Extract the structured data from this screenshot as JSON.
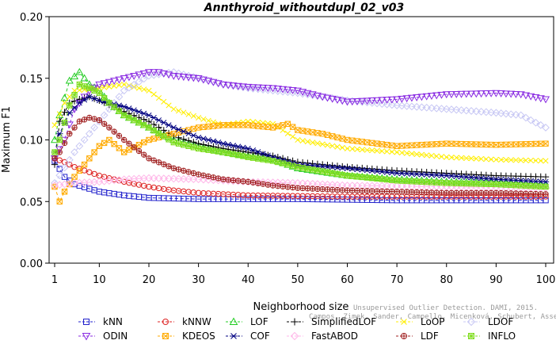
{
  "chart_data": {
    "type": "line",
    "title": "Annthyroid_withoutdupl_02_v03",
    "xlabel": "Neighborhood size",
    "ylabel": "Maximum F1",
    "xlim": [
      1,
      100
    ],
    "ylim": [
      0,
      0.2
    ],
    "xticks": [
      1,
      10,
      20,
      30,
      40,
      50,
      60,
      70,
      80,
      90,
      100
    ],
    "xtick_labels": [
      "1",
      "10",
      "20",
      "30",
      "40",
      "50",
      "60",
      "70",
      "80",
      "90",
      "100"
    ],
    "yticks": [
      0,
      0.05,
      0.1,
      0.15,
      0.2
    ],
    "ytick_labels": [
      "0.00",
      "0.05",
      "0.10",
      "0.15",
      "0.20"
    ],
    "grid": false,
    "legend_position": "bottom",
    "credit_line1": "Unsupervised Outlier Detection. DAMI, 2015.",
    "credit_line2": "Campos, Zimek, Sander, Campello, Micenková, Schubert, Assent, Houle",
    "series": [
      {
        "name": "kNN",
        "color": "#2222cc",
        "marker": "square",
        "points": [
          [
            1,
            0.083
          ],
          [
            3,
            0.07
          ],
          [
            5,
            0.064
          ],
          [
            10,
            0.058
          ],
          [
            15,
            0.055
          ],
          [
            20,
            0.053
          ],
          [
            30,
            0.052
          ],
          [
            50,
            0.052
          ],
          [
            70,
            0.051
          ],
          [
            100,
            0.051
          ]
        ]
      },
      {
        "name": "kNNW",
        "color": "#dd2222",
        "marker": "circle",
        "points": [
          [
            1,
            0.085
          ],
          [
            3,
            0.082
          ],
          [
            5,
            0.078
          ],
          [
            10,
            0.071
          ],
          [
            15,
            0.066
          ],
          [
            20,
            0.062
          ],
          [
            25,
            0.059
          ],
          [
            30,
            0.057
          ],
          [
            40,
            0.055
          ],
          [
            60,
            0.054
          ],
          [
            80,
            0.054
          ],
          [
            100,
            0.054
          ]
        ]
      },
      {
        "name": "LOF",
        "color": "#22cc22",
        "marker": "triangle-up",
        "points": [
          [
            1,
            0.1
          ],
          [
            2,
            0.12
          ],
          [
            4,
            0.148
          ],
          [
            6,
            0.155
          ],
          [
            8,
            0.145
          ],
          [
            10,
            0.14
          ],
          [
            12,
            0.13
          ],
          [
            15,
            0.12
          ],
          [
            20,
            0.11
          ],
          [
            25,
            0.1
          ],
          [
            30,
            0.095
          ],
          [
            35,
            0.09
          ],
          [
            40,
            0.087
          ],
          [
            45,
            0.084
          ],
          [
            50,
            0.077
          ],
          [
            60,
            0.071
          ],
          [
            70,
            0.068
          ],
          [
            80,
            0.066
          ],
          [
            90,
            0.065
          ],
          [
            100,
            0.063
          ]
        ]
      },
      {
        "name": "SimplifiedLOF",
        "color": "#000000",
        "marker": "plus",
        "points": [
          [
            1,
            0.08
          ],
          [
            2,
            0.115
          ],
          [
            4,
            0.13
          ],
          [
            6,
            0.133
          ],
          [
            8,
            0.135
          ],
          [
            10,
            0.132
          ],
          [
            15,
            0.123
          ],
          [
            20,
            0.115
          ],
          [
            25,
            0.103
          ],
          [
            30,
            0.097
          ],
          [
            35,
            0.093
          ],
          [
            40,
            0.09
          ],
          [
            45,
            0.087
          ],
          [
            50,
            0.082
          ],
          [
            60,
            0.078
          ],
          [
            70,
            0.075
          ],
          [
            80,
            0.073
          ],
          [
            90,
            0.071
          ],
          [
            100,
            0.07
          ]
        ]
      },
      {
        "name": "LoOP",
        "color": "#ffee00",
        "marker": "cross",
        "points": [
          [
            1,
            0.112
          ],
          [
            3,
            0.13
          ],
          [
            5,
            0.14
          ],
          [
            10,
            0.142
          ],
          [
            15,
            0.145
          ],
          [
            20,
            0.14
          ],
          [
            25,
            0.125
          ],
          [
            30,
            0.118
          ],
          [
            35,
            0.112
          ],
          [
            40,
            0.115
          ],
          [
            45,
            0.113
          ],
          [
            50,
            0.1
          ],
          [
            60,
            0.093
          ],
          [
            70,
            0.09
          ],
          [
            80,
            0.086
          ],
          [
            90,
            0.084
          ],
          [
            100,
            0.083
          ]
        ]
      },
      {
        "name": "LDOF",
        "color": "#c8c8f4",
        "marker": "diamond",
        "points": [
          [
            1,
            0.065
          ],
          [
            5,
            0.09
          ],
          [
            10,
            0.115
          ],
          [
            15,
            0.14
          ],
          [
            20,
            0.152
          ],
          [
            25,
            0.155
          ],
          [
            30,
            0.15
          ],
          [
            35,
            0.145
          ],
          [
            40,
            0.142
          ],
          [
            45,
            0.14
          ],
          [
            50,
            0.138
          ],
          [
            55,
            0.135
          ],
          [
            60,
            0.132
          ],
          [
            70,
            0.128
          ],
          [
            80,
            0.125
          ],
          [
            90,
            0.122
          ],
          [
            95,
            0.12
          ],
          [
            100,
            0.11
          ]
        ]
      },
      {
        "name": "ODIN",
        "color": "#8a2be2",
        "marker": "triangle-down",
        "points": [
          [
            1,
            0.085
          ],
          [
            3,
            0.1
          ],
          [
            5,
            0.125
          ],
          [
            8,
            0.14
          ],
          [
            10,
            0.145
          ],
          [
            15,
            0.15
          ],
          [
            20,
            0.155
          ],
          [
            22,
            0.155
          ],
          [
            25,
            0.152
          ],
          [
            30,
            0.15
          ],
          [
            35,
            0.145
          ],
          [
            40,
            0.143
          ],
          [
            45,
            0.142
          ],
          [
            50,
            0.14
          ],
          [
            55,
            0.135
          ],
          [
            60,
            0.131
          ],
          [
            70,
            0.133
          ],
          [
            80,
            0.137
          ],
          [
            90,
            0.138
          ],
          [
            95,
            0.137
          ],
          [
            100,
            0.133
          ]
        ]
      },
      {
        "name": "KDEOS",
        "color": "#ffaa00",
        "marker": "square-x",
        "points": [
          [
            1,
            0.062
          ],
          [
            2,
            0.05
          ],
          [
            3,
            0.058
          ],
          [
            5,
            0.07
          ],
          [
            8,
            0.085
          ],
          [
            10,
            0.095
          ],
          [
            12,
            0.1
          ],
          [
            15,
            0.09
          ],
          [
            18,
            0.096
          ],
          [
            20,
            0.1
          ],
          [
            25,
            0.105
          ],
          [
            30,
            0.11
          ],
          [
            35,
            0.112
          ],
          [
            40,
            0.112
          ],
          [
            45,
            0.11
          ],
          [
            48,
            0.113
          ],
          [
            50,
            0.108
          ],
          [
            55,
            0.105
          ],
          [
            60,
            0.1
          ],
          [
            70,
            0.095
          ],
          [
            80,
            0.097
          ],
          [
            90,
            0.096
          ],
          [
            100,
            0.097
          ]
        ]
      },
      {
        "name": "COF",
        "color": "#000080",
        "marker": "asterisk",
        "points": [
          [
            1,
            0.09
          ],
          [
            2,
            0.105
          ],
          [
            4,
            0.122
          ],
          [
            6,
            0.13
          ],
          [
            8,
            0.135
          ],
          [
            10,
            0.132
          ],
          [
            15,
            0.127
          ],
          [
            20,
            0.12
          ],
          [
            25,
            0.11
          ],
          [
            30,
            0.102
          ],
          [
            35,
            0.097
          ],
          [
            40,
            0.093
          ],
          [
            45,
            0.086
          ],
          [
            50,
            0.08
          ],
          [
            60,
            0.077
          ],
          [
            70,
            0.073
          ],
          [
            80,
            0.071
          ],
          [
            90,
            0.068
          ],
          [
            100,
            0.066
          ]
        ]
      },
      {
        "name": "FastABOD",
        "color": "#ffb6e8",
        "marker": "diamond-filled",
        "points": [
          [
            1,
            0.063
          ],
          [
            5,
            0.065
          ],
          [
            10,
            0.066
          ],
          [
            15,
            0.068
          ],
          [
            20,
            0.069
          ],
          [
            30,
            0.068
          ],
          [
            40,
            0.066
          ],
          [
            50,
            0.065
          ],
          [
            60,
            0.063
          ],
          [
            80,
            0.062
          ],
          [
            100,
            0.061
          ]
        ]
      },
      {
        "name": "LDF",
        "color": "#a02020",
        "marker": "circle-plus",
        "points": [
          [
            1,
            0.085
          ],
          [
            2,
            0.09
          ],
          [
            4,
            0.105
          ],
          [
            6,
            0.115
          ],
          [
            8,
            0.118
          ],
          [
            10,
            0.116
          ],
          [
            12,
            0.11
          ],
          [
            15,
            0.1
          ],
          [
            20,
            0.085
          ],
          [
            25,
            0.077
          ],
          [
            30,
            0.072
          ],
          [
            35,
            0.068
          ],
          [
            40,
            0.066
          ],
          [
            45,
            0.063
          ],
          [
            50,
            0.061
          ],
          [
            60,
            0.059
          ],
          [
            70,
            0.058
          ],
          [
            80,
            0.057
          ],
          [
            90,
            0.057
          ],
          [
            100,
            0.056
          ]
        ]
      },
      {
        "name": "INFLO",
        "color": "#80dd20",
        "marker": "square-star",
        "points": [
          [
            1,
            0.09
          ],
          [
            2,
            0.1
          ],
          [
            4,
            0.128
          ],
          [
            6,
            0.145
          ],
          [
            8,
            0.142
          ],
          [
            10,
            0.138
          ],
          [
            12,
            0.13
          ],
          [
            15,
            0.12
          ],
          [
            20,
            0.11
          ],
          [
            25,
            0.098
          ],
          [
            30,
            0.093
          ],
          [
            35,
            0.09
          ],
          [
            40,
            0.086
          ],
          [
            45,
            0.083
          ],
          [
            50,
            0.078
          ],
          [
            60,
            0.071
          ],
          [
            70,
            0.067
          ],
          [
            80,
            0.065
          ],
          [
            90,
            0.064
          ],
          [
            100,
            0.062
          ]
        ]
      }
    ]
  },
  "legend_rows": [
    [
      {
        "name": "kNN",
        "marker": "square",
        "color": "#2222cc"
      },
      {
        "name": "kNNW",
        "marker": "circle",
        "color": "#dd2222"
      },
      {
        "name": "LOF",
        "marker": "triangle-up",
        "color": "#22cc22"
      },
      {
        "name": "SimplifiedLOF",
        "marker": "plus",
        "color": "#000000"
      },
      {
        "name": "LoOP",
        "marker": "cross",
        "color": "#ffee00"
      },
      {
        "name": "LDOF",
        "marker": "diamond",
        "color": "#c8c8f4"
      }
    ],
    [
      {
        "name": "ODIN",
        "marker": "triangle-down",
        "color": "#8a2be2"
      },
      {
        "name": "KDEOS",
        "marker": "square-x",
        "color": "#ffaa00"
      },
      {
        "name": "COF",
        "marker": "asterisk",
        "color": "#000080"
      },
      {
        "name": "FastABOD",
        "marker": "diamond-filled",
        "color": "#ffb6e8"
      },
      {
        "name": "LDF",
        "marker": "circle-plus",
        "color": "#a02020"
      },
      {
        "name": "INFLO",
        "marker": "square-star",
        "color": "#80dd20"
      }
    ]
  ]
}
